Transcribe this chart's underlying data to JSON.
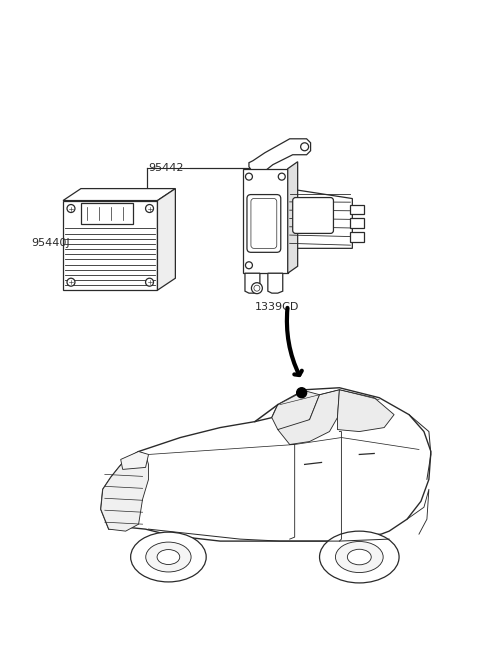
{
  "background_color": "#ffffff",
  "line_color": "#2a2a2a",
  "label_95442": "95442",
  "label_95440J": "95440J",
  "label_1339CD": "1339CD",
  "figsize": [
    4.8,
    6.57
  ],
  "dpi": 100
}
